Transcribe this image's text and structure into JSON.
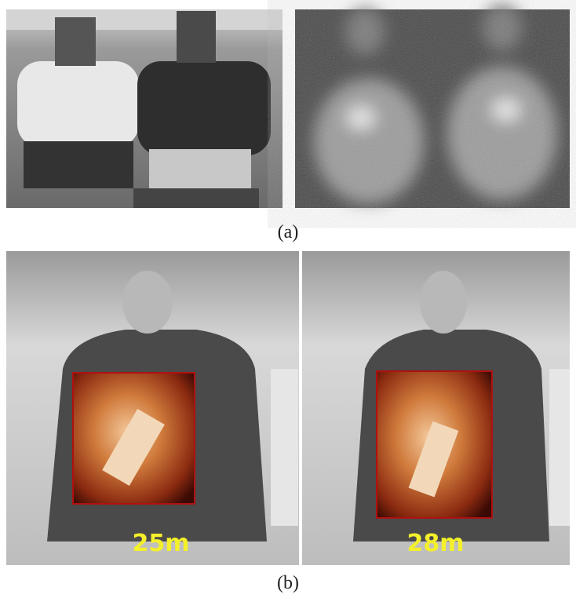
{
  "panels": [
    {
      "caption": "(a)"
    },
    {
      "caption": "(b)",
      "labels": [
        "25m",
        "28m"
      ]
    }
  ]
}
